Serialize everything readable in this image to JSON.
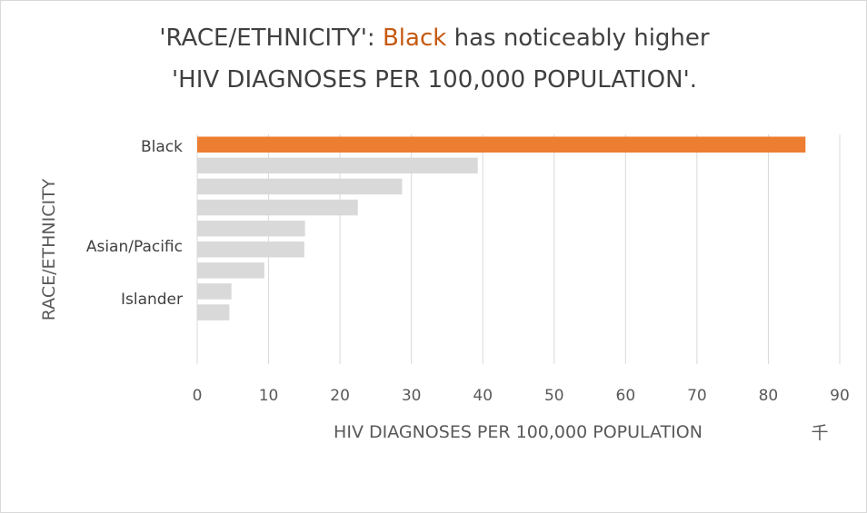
{
  "title": {
    "line1_prefix": "'RACE/ETHNICITY': ",
    "line1_highlight": "Black",
    "line1_suffix": " has noticeably higher",
    "line2": "'HIV DIAGNOSES PER 100,000 POPULATION'.",
    "highlight_color": "#c65911"
  },
  "chart_data": {
    "type": "bar",
    "orientation": "horizontal",
    "categories": [
      "Black",
      "",
      "",
      "",
      "",
      "Asian/Pacific",
      "",
      "Islander",
      ""
    ],
    "values": [
      85.2,
      39.3,
      28.7,
      22.5,
      15.1,
      15.0,
      9.4,
      4.8,
      4.5
    ],
    "highlight_index": 0,
    "colors": {
      "highlight": "#ed7d31",
      "default": "#d9d9d9",
      "grid": "#d9d9d9"
    },
    "xlabel": "HIV DIAGNOSES PER 100,000 POPULATION",
    "ylabel": "RACE/ETHNICITY",
    "xlim": [
      0,
      90
    ],
    "xticks": [
      0,
      10,
      20,
      30,
      40,
      50,
      60,
      70,
      80,
      90
    ],
    "unit_label": "千",
    "grid": true
  }
}
